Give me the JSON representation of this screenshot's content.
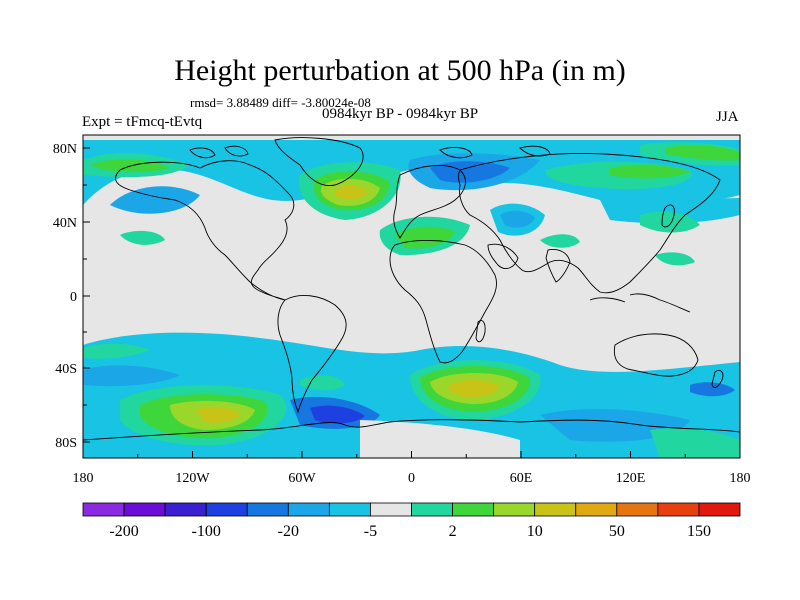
{
  "title": "Height perturbation at 500 hPa (in m)",
  "stats_line": "rmsd= 3.88489 diff= -3.80024e-08",
  "period_label": "0984kyr BP - 0984kyr BP",
  "experiment_label": "Expt = tFmcq-tEvtq",
  "season_label": "JJA",
  "lat_ticks": [
    "80N",
    "40N",
    "0",
    "40S",
    "80S"
  ],
  "lon_ticks": [
    "180",
    "120W",
    "60W",
    "0",
    "60E",
    "120E",
    "180"
  ],
  "colorbar": {
    "colors": [
      "#8a2be2",
      "#6a0dd6",
      "#3a20d0",
      "#1e40e0",
      "#1677e0",
      "#1ba6e8",
      "#19c3e3",
      "#e6e6e6",
      "#22d6a0",
      "#3ed63a",
      "#9bd62b",
      "#c8c417",
      "#e0a912",
      "#e67410",
      "#e8400d",
      "#e0180e"
    ],
    "labels": [
      "-200",
      "-100",
      "-20",
      "-5",
      "2",
      "10",
      "50",
      "150"
    ]
  },
  "colors": {
    "background_field": "#e6e6e6",
    "coastline": "#000000"
  }
}
